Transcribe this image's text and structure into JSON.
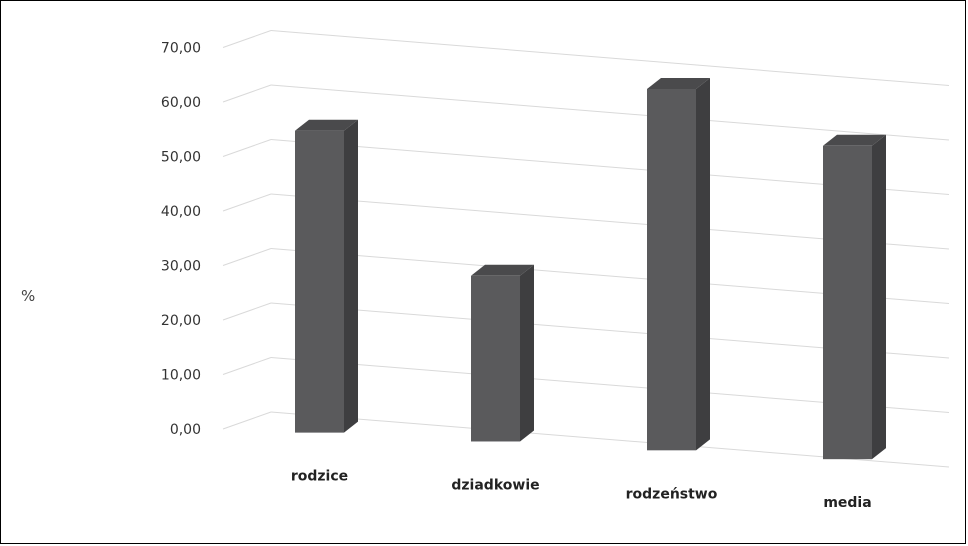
{
  "chart_data": {
    "type": "bar",
    "style": "3d",
    "categories": [
      "rodzice",
      "dziadkowie",
      "rodzeństwo",
      "media"
    ],
    "values": [
      55.4,
      30.4,
      66.3,
      57.5
    ],
    "ylabel": "%",
    "ylim": [
      0,
      70
    ],
    "yticks": [
      "0,00",
      "10,00",
      "20,00",
      "30,00",
      "40,00",
      "50,00",
      "60,00",
      "70,00"
    ],
    "grid": true,
    "colors": {
      "front": "#5a5a5c",
      "side": "#3e3e40",
      "top": "#4a4a4c",
      "grid": "#d9d9d9"
    }
  }
}
